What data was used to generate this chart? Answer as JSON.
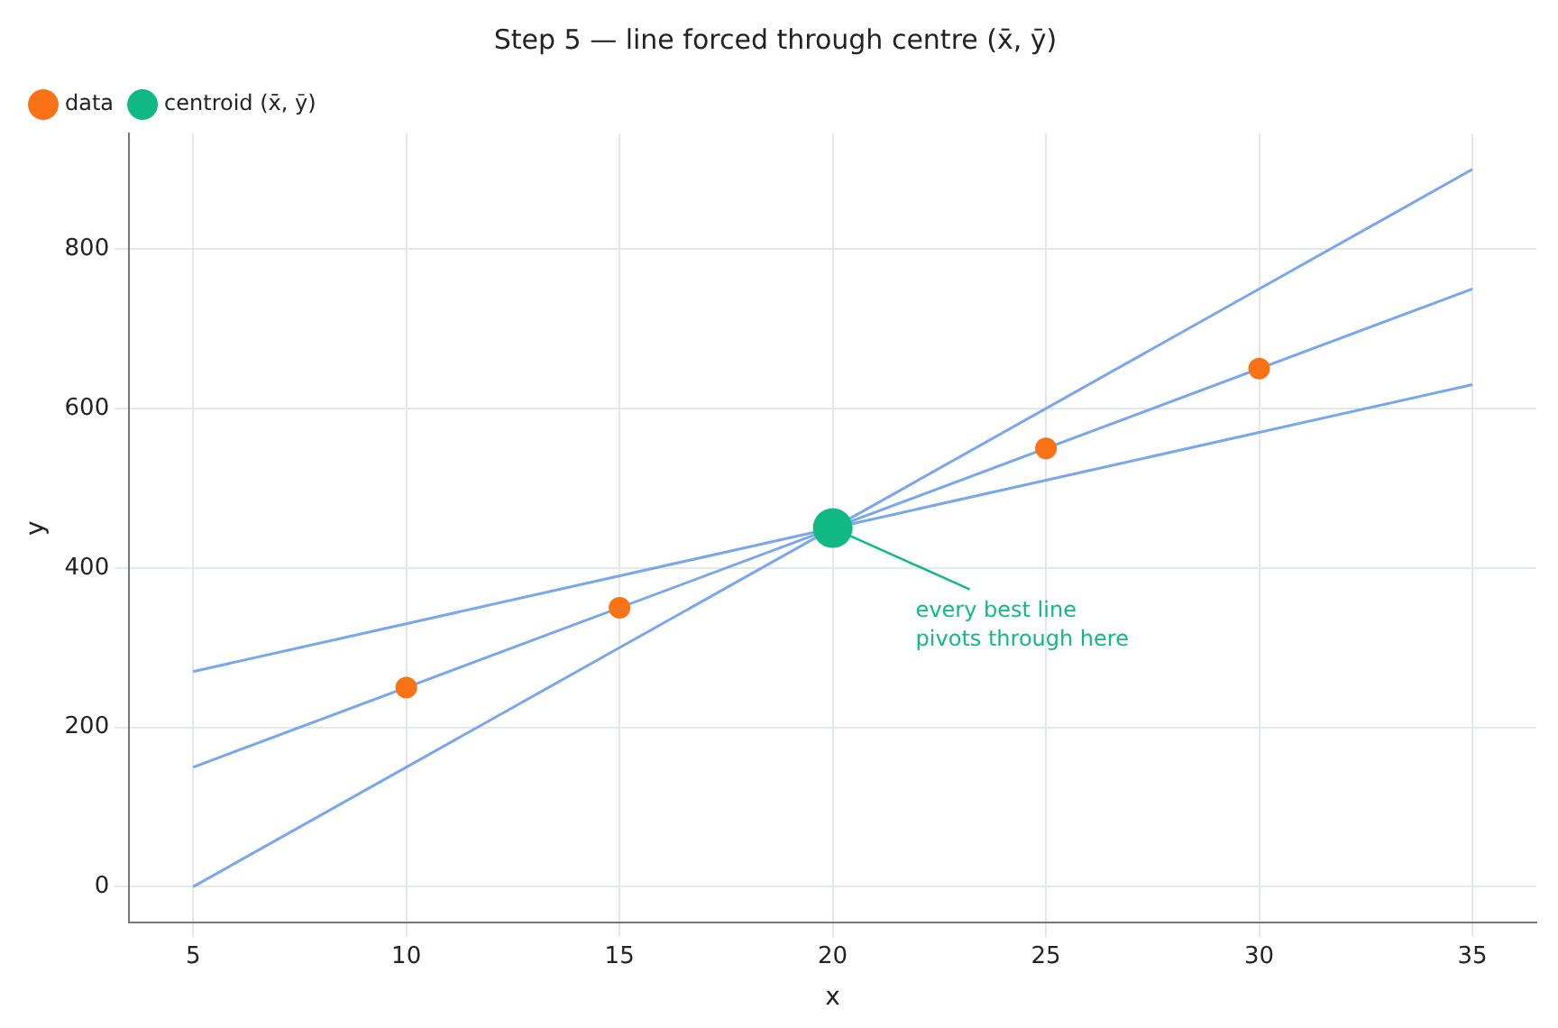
{
  "chart_data": {
    "type": "scatter",
    "title": "Step 5 — line forced through centre (x̄, ȳ)",
    "xlabel": "x",
    "ylabel": "y",
    "xlim": [
      3.5,
      36.5
    ],
    "xticks": [
      5,
      10,
      15,
      20,
      25,
      30,
      35
    ],
    "ylim": [
      -45,
      945
    ],
    "yticks": [
      0,
      200,
      400,
      600,
      800
    ],
    "grid": true,
    "legend": "top left",
    "marker": "circle",
    "series": [
      {
        "type": "line",
        "marker": "none",
        "color": "#7aa6ee",
        "x": [
          5,
          35
        ],
        "values": [
          270,
          630
        ]
      },
      {
        "type": "line",
        "marker": "none",
        "color": "#7aa6ee",
        "x": [
          5,
          35
        ],
        "values": [
          150,
          750
        ]
      },
      {
        "type": "line",
        "marker": "none",
        "color": "#7aa6ee",
        "x": [
          5,
          35
        ],
        "values": [
          0,
          900
        ]
      },
      {
        "name": "data",
        "color": "#f97316",
        "x": [
          10,
          15,
          25,
          30
        ],
        "values": [
          250,
          350,
          550,
          650
        ]
      },
      {
        "type": "scatter",
        "name": "centroid (x̄, ȳ)",
        "color": "#10b981",
        "x": [
          20
        ],
        "values": [
          450
        ]
      }
    ],
    "annotations": [
      {
        "text": "every best line\npivots through here",
        "x": 20,
        "y": 450
      }
    ]
  }
}
